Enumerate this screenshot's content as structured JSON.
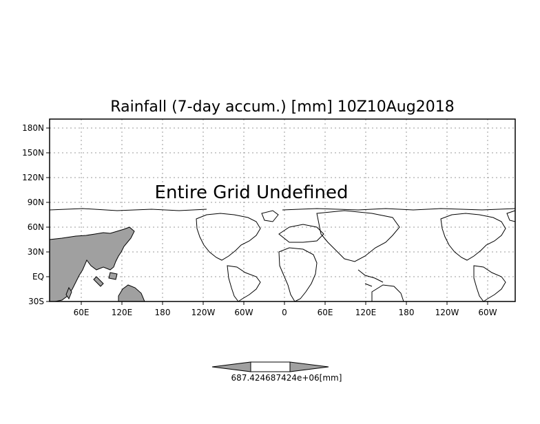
{
  "title": "Rainfall (7-day accum.) [mm] 10Z10Aug2018",
  "message": "Entire Grid Undefined",
  "y_ticks": [
    "180N",
    "150N",
    "120N",
    "90N",
    "60N",
    "30N",
    "EQ",
    "30S"
  ],
  "x_ticks": [
    "60E",
    "120E",
    "180",
    "120W",
    "60W",
    "0",
    "60E",
    "120E",
    "180",
    "120W",
    "60W"
  ],
  "colorbar": {
    "label": "687.424687424e+06[mm]",
    "colors": [
      "#a0a0a0",
      "#ffffff",
      "#a0a0a0"
    ]
  },
  "land_color": "#a0a0a0",
  "grid": "dotted"
}
